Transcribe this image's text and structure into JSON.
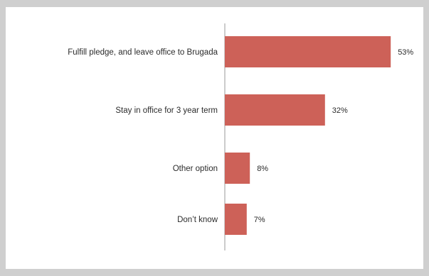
{
  "chart_data": {
    "type": "bar",
    "orientation": "horizontal",
    "categories": [
      "Fulfill pledge, and leave office to Brugada",
      "Stay in office for 3 year term",
      "Other option",
      "Don’t know"
    ],
    "values": [
      53,
      32,
      8,
      7
    ],
    "value_labels": [
      "53%",
      "32%",
      "8%",
      "7%"
    ],
    "unit": "%",
    "xlim": [
      0,
      100
    ],
    "grid": false,
    "legend": "none",
    "bar_color": "#cd6158",
    "axis_color": "#9a9a9a"
  }
}
